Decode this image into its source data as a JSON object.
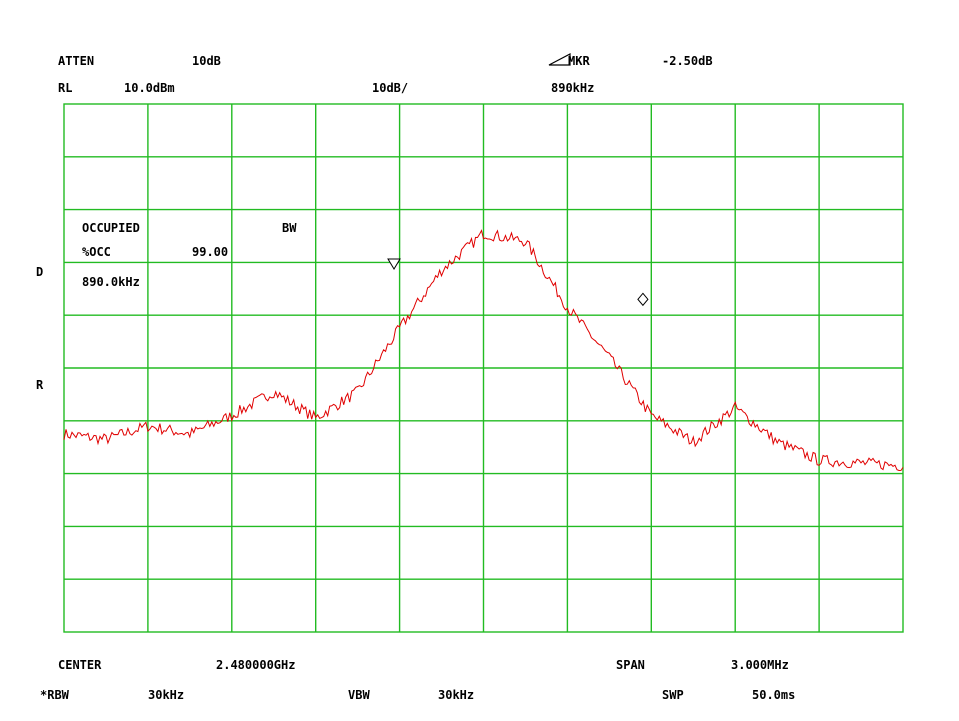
{
  "header": {
    "atten_label": "ATTEN",
    "atten_value": "10dB",
    "mkr_label": "MKR",
    "mkr_value": "-2.50dB",
    "rl_label": "RL",
    "rl_value": "10.0dBm",
    "scale": "10dB/",
    "mkr_freq": "890kHz"
  },
  "side": {
    "d": "D",
    "r": "R"
  },
  "overlay": {
    "line1_a": "OCCUPIED",
    "line1_b": "BW",
    "line2_a": "%OCC",
    "line2_b": "99.00",
    "line3": "890.0kHz"
  },
  "footer": {
    "center_label": "CENTER",
    "center_value": "2.480000GHz",
    "span_label": "SPAN",
    "span_value": "3.000MHz",
    "rbw_label": "*RBW",
    "rbw_value": "30kHz",
    "vbw_label": "VBW",
    "vbw_value": "30kHz",
    "swp_label": "SWP",
    "swp_value": "50.0ms"
  },
  "colors": {
    "grid": "#22bb22",
    "trace": "#e00000",
    "text": "#000000",
    "background": "#ffffff"
  },
  "chart_data": {
    "type": "line",
    "title": "",
    "x_divisions": 10,
    "y_divisions": 10,
    "xlim": [
      2.4785,
      2.4815
    ],
    "ylim": [
      -90,
      10
    ],
    "grid": true,
    "series": [
      {
        "color": "#e00000",
        "x": [
          2.4785,
          2.47865,
          2.4788,
          2.47895,
          2.4791,
          2.47925,
          2.4794,
          2.47955,
          2.4797,
          2.47985,
          2.48,
          2.48015,
          2.4803,
          2.48045,
          2.4806,
          2.48075,
          2.4809,
          2.48105,
          2.4812,
          2.48135,
          2.4815
        ],
        "values": [
          -52.5,
          -53.5,
          -51,
          -52.5,
          -49,
          -44.5,
          -49.5,
          -44.5,
          -32.5,
          -21.5,
          -14.5,
          -16,
          -28.5,
          -38,
          -49,
          -54,
          -47.5,
          -54,
          -57.5,
          -58,
          -58.5
        ]
      }
    ],
    "markers": [
      {
        "shape": "triangle-down",
        "x": 2.47968,
        "value": -20.5
      },
      {
        "shape": "diamond",
        "x": 2.48057,
        "value": -27
      }
    ]
  }
}
